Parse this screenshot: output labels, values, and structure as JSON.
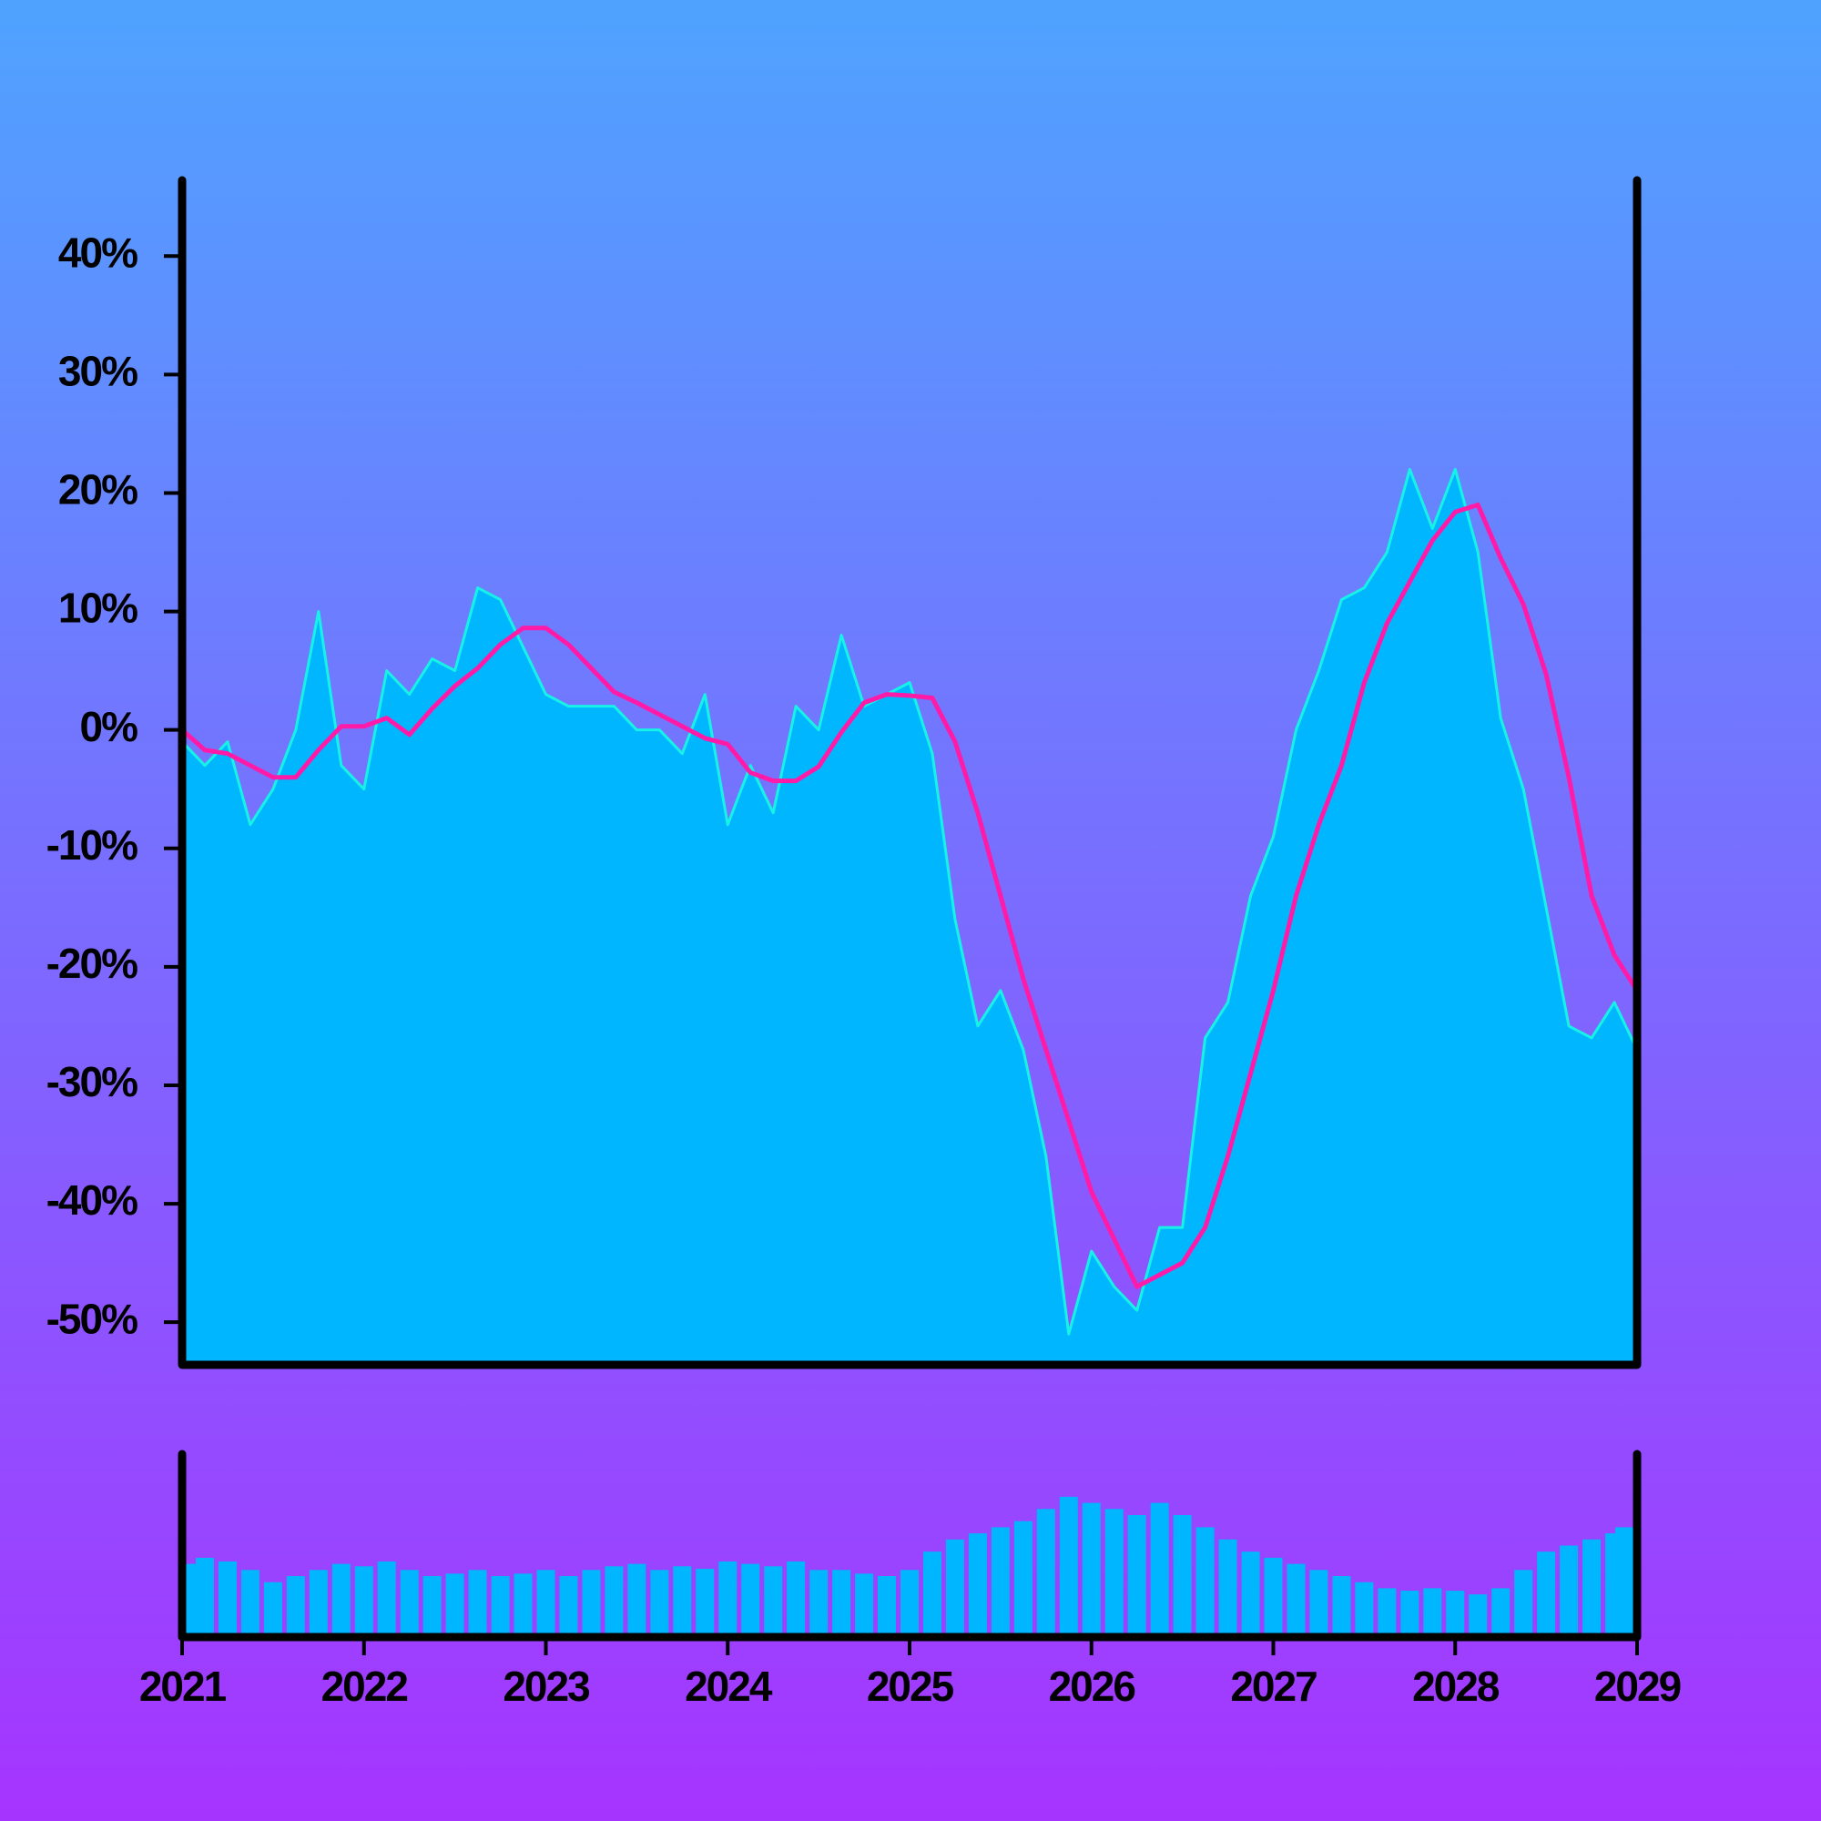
{
  "chart_data": [
    {
      "type": "line",
      "x": [
        2021,
        2021.125,
        2021.25,
        2021.375,
        2021.5,
        2021.625,
        2021.75,
        2021.875,
        2022,
        2022.125,
        2022.25,
        2022.375,
        2022.5,
        2022.625,
        2022.75,
        2022.875,
        2023,
        2023.125,
        2023.25,
        2023.375,
        2023.5,
        2023.625,
        2023.75,
        2023.875,
        2024,
        2024.125,
        2024.25,
        2024.375,
        2024.5,
        2024.625,
        2024.75,
        2024.875,
        2025,
        2025.125,
        2025.25,
        2025.375,
        2025.5,
        2025.625,
        2025.75,
        2025.875,
        2026,
        2026.125,
        2026.25,
        2026.375,
        2026.5,
        2026.625,
        2026.75,
        2026.875,
        2027,
        2027.125,
        2027.25,
        2027.375,
        2027.5,
        2027.625,
        2027.75,
        2027.875,
        2028,
        2028.125,
        2028.25,
        2028.375,
        2028.5,
        2028.625,
        2028.75,
        2028.875,
        2029
      ],
      "series": [
        {
          "color": "#17f2e6",
          "fill": "#00b7ff",
          "values": [
            -1,
            -3,
            -1,
            -8,
            -5,
            0,
            10,
            -3,
            -5,
            5,
            3,
            6,
            5,
            12,
            11,
            7,
            3,
            2,
            2,
            2,
            0,
            0,
            -2,
            3,
            -8,
            -3,
            -7,
            2,
            0,
            8,
            2,
            3,
            4,
            -2,
            -16,
            -25,
            -22,
            -27,
            -36,
            -51,
            -44,
            -47,
            -49,
            -42,
            -42,
            -26,
            -23,
            -14,
            -9,
            0,
            5,
            11,
            12,
            15,
            22,
            17,
            22,
            15,
            1,
            -5,
            -15,
            -25,
            -26,
            -23,
            -27
          ]
        },
        {
          "color": "#ff1aa8",
          "values": [
            0,
            -1.7,
            -2,
            -3,
            -4,
            -4,
            -1.7,
            0.3,
            0.3,
            1,
            -0.4,
            1.8,
            3.7,
            5.2,
            7.2,
            8.6,
            8.6,
            7.2,
            5.2,
            3.2,
            2.3,
            1.3,
            0.3,
            -0.7,
            -1.2,
            -3.6,
            -4.3,
            -4.3,
            -3.1,
            -0.2,
            2.3,
            3,
            2.9,
            2.7,
            -1,
            -7,
            -14,
            -21,
            -27,
            -33,
            -39,
            -43,
            -47,
            -46,
            -45,
            -42,
            -36,
            -29,
            -22,
            -14,
            -8,
            -3,
            4,
            9,
            12.5,
            16,
            18.4,
            19,
            14.5,
            10.6,
            4.7,
            -4,
            -14,
            -19,
            -22
          ]
        }
      ],
      "xlim": [
        2021,
        2029
      ],
      "ylim": [
        -53.6,
        46.4
      ],
      "yticks": [
        {
          "value": 40,
          "label": "40%"
        },
        {
          "value": 30,
          "label": "30%"
        },
        {
          "value": 20,
          "label": "20%"
        },
        {
          "value": 10,
          "label": "10%"
        },
        {
          "value": 0,
          "label": "0%"
        },
        {
          "value": -10,
          "label": "-10%"
        },
        {
          "value": -20,
          "label": "-20%"
        },
        {
          "value": -30,
          "label": "-30%"
        },
        {
          "value": -40,
          "label": "-40%"
        },
        {
          "value": -50,
          "label": "-50%"
        }
      ]
    },
    {
      "type": "bar",
      "x": [
        2021,
        2021.125,
        2021.25,
        2021.375,
        2021.5,
        2021.625,
        2021.75,
        2021.875,
        2022,
        2022.125,
        2022.25,
        2022.375,
        2022.5,
        2022.625,
        2022.75,
        2022.875,
        2023,
        2023.125,
        2023.25,
        2023.375,
        2023.5,
        2023.625,
        2023.75,
        2023.875,
        2024,
        2024.125,
        2024.25,
        2024.375,
        2024.5,
        2024.625,
        2024.75,
        2024.875,
        2025,
        2025.125,
        2025.25,
        2025.375,
        2025.5,
        2025.625,
        2025.75,
        2025.875,
        2026,
        2026.125,
        2026.25,
        2026.375,
        2026.5,
        2026.625,
        2026.75,
        2026.875,
        2027,
        2027.125,
        2027.25,
        2027.375,
        2027.5,
        2027.625,
        2027.75,
        2027.875,
        2028,
        2028.125,
        2028.25,
        2028.375,
        2028.5,
        2028.625,
        2028.75,
        2028.875,
        2029
      ],
      "values": [
        60,
        65,
        62,
        55,
        45,
        50,
        55,
        60,
        58,
        62,
        55,
        50,
        52,
        55,
        50,
        52,
        55,
        50,
        55,
        58,
        60,
        55,
        58,
        56,
        62,
        60,
        58,
        62,
        55,
        55,
        52,
        50,
        55,
        70,
        80,
        85,
        90,
        95,
        105,
        115,
        110,
        105,
        100,
        110,
        100,
        90,
        80,
        70,
        65,
        60,
        55,
        50,
        45,
        40,
        38,
        40,
        38,
        35,
        40,
        55,
        70,
        75,
        80,
        85,
        90
      ],
      "color": "#00b7ff",
      "xlim": [
        2021,
        2029
      ],
      "ylim": [
        0,
        150
      ],
      "xticks": [
        2021,
        2022,
        2023,
        2024,
        2025,
        2026,
        2027,
        2028,
        2029
      ]
    }
  ]
}
